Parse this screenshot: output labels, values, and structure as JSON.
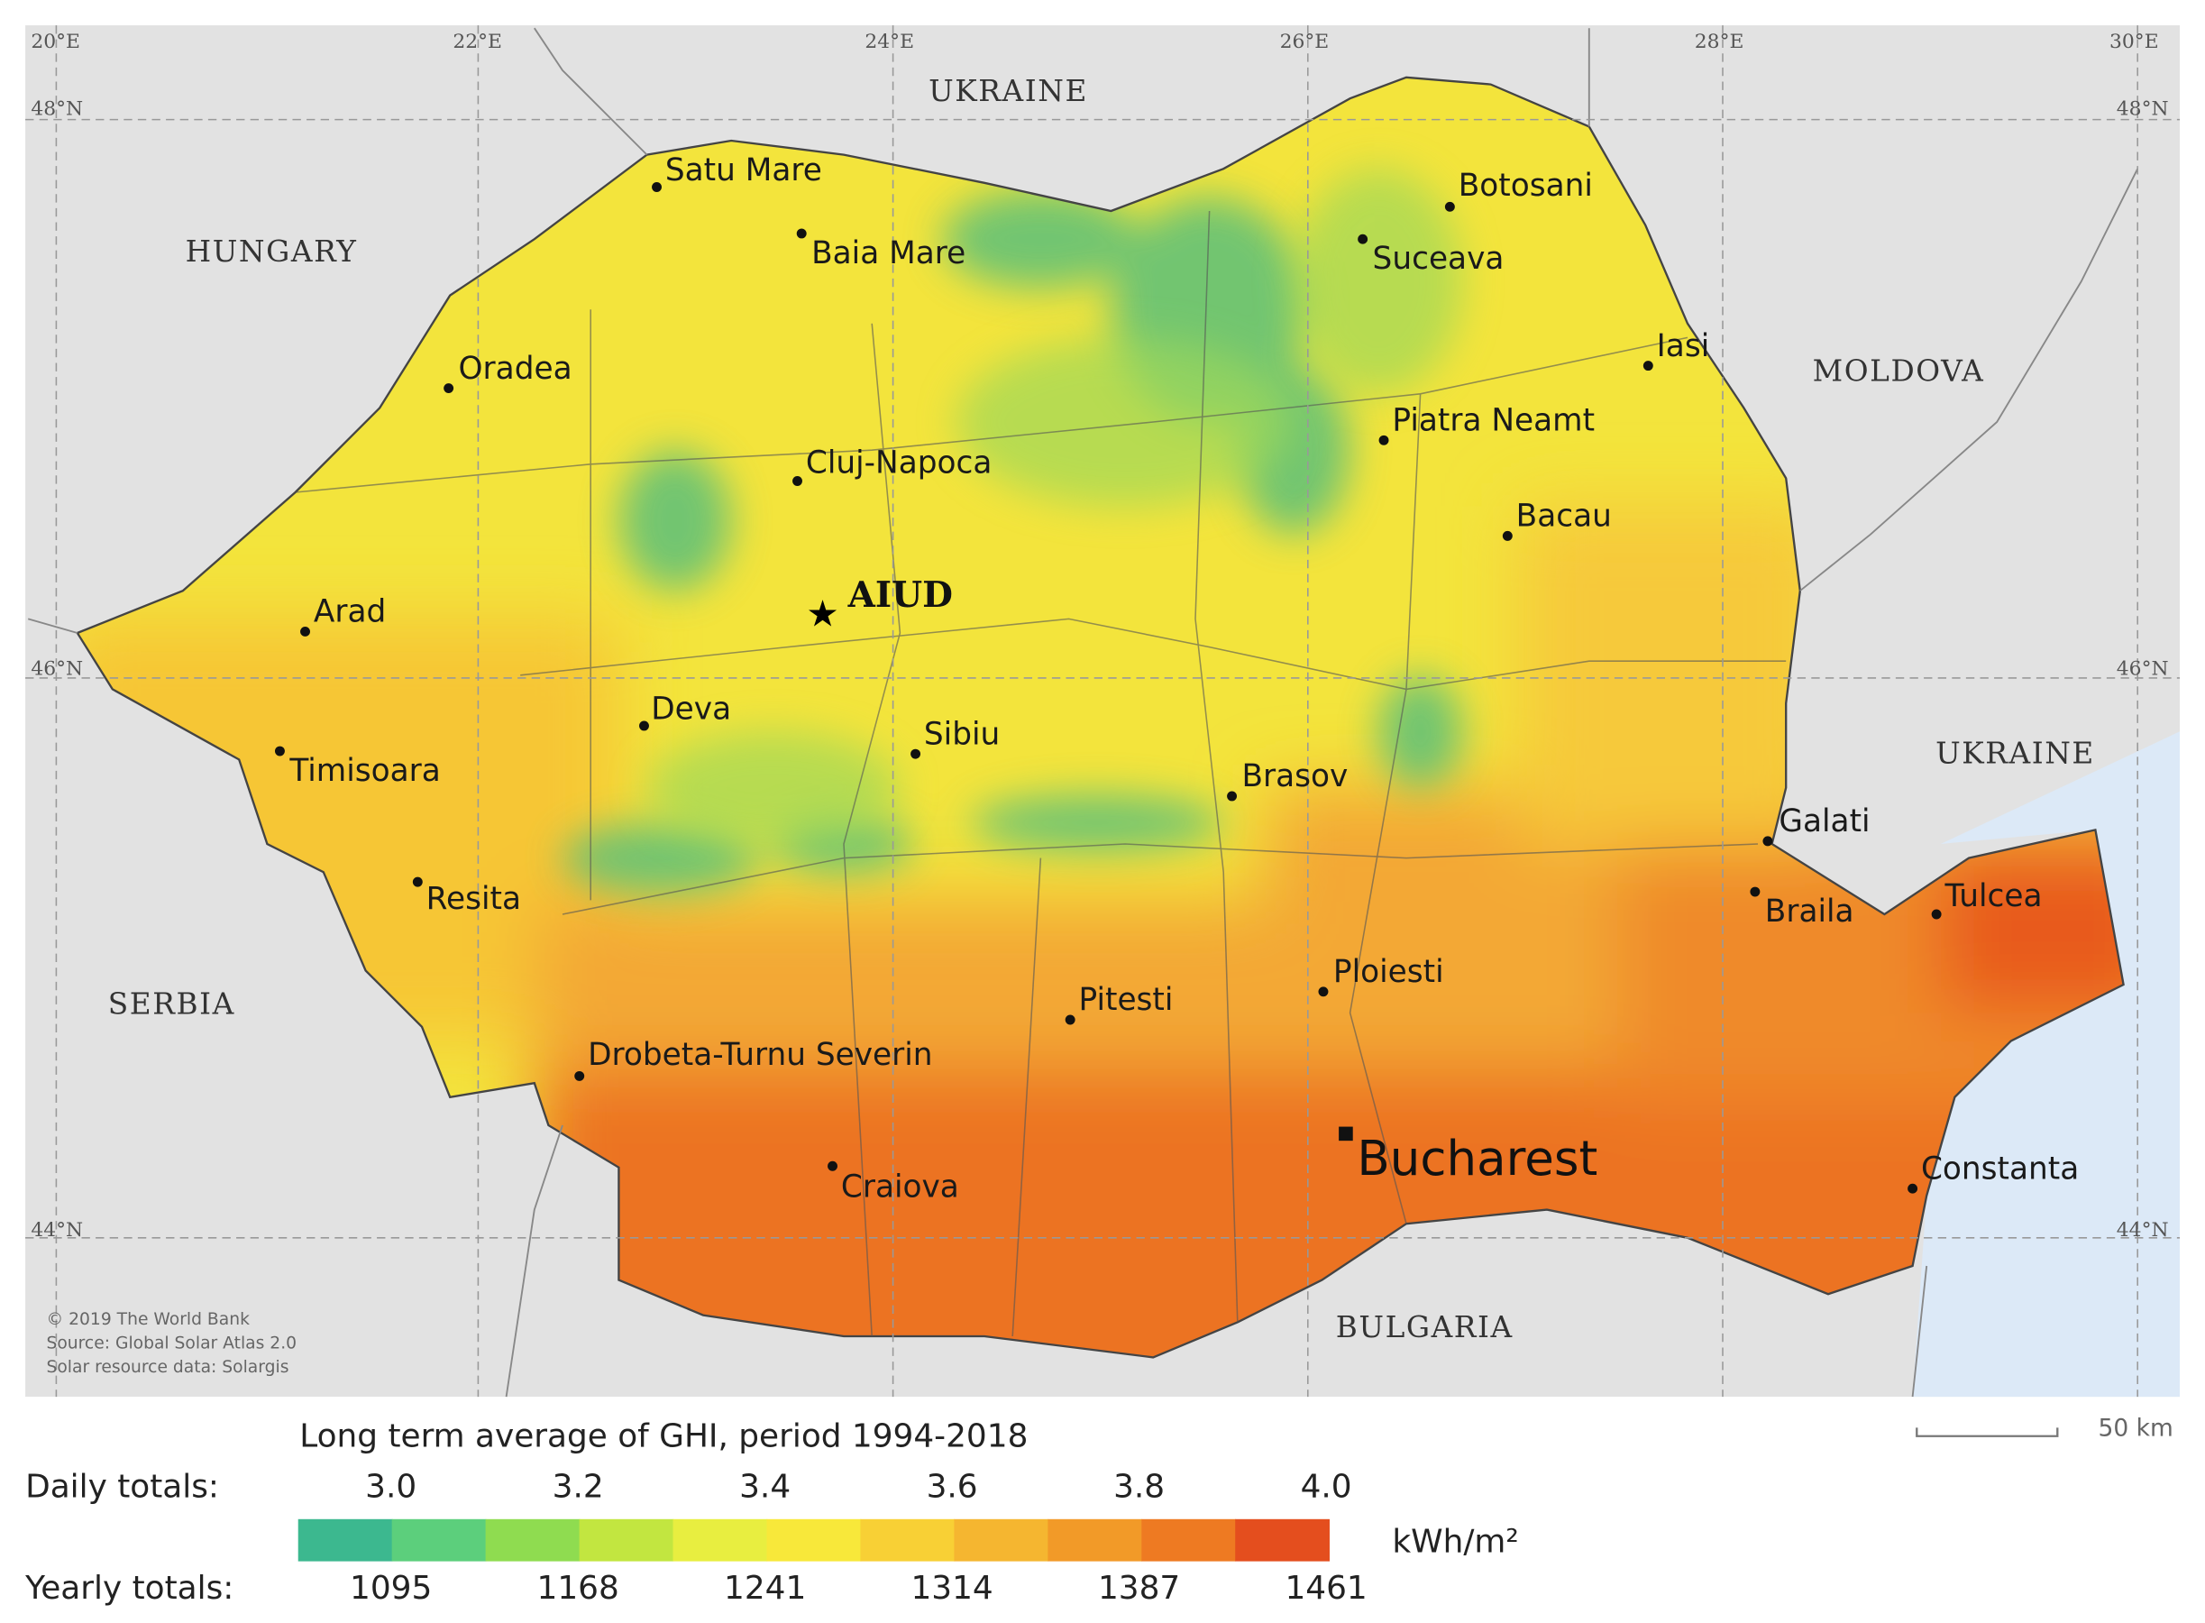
{
  "graticule": {
    "longitudes": [
      "20°E",
      "22°E",
      "24°E",
      "26°E",
      "28°E",
      "30°E"
    ],
    "latitudes": [
      "48°N",
      "46°N",
      "44°N"
    ]
  },
  "countries": [
    "UKRAINE",
    "HUNGARY",
    "MOLDOVA",
    "UKRAINE",
    "SERBIA",
    "BULGARIA"
  ],
  "cities": [
    "Satu Mare",
    "Baia Mare",
    "Oradea",
    "Cluj-Napoca",
    "Arad",
    "Deva",
    "Timisoara",
    "Resita",
    "Sibiu",
    "Brasov",
    "Drobeta-Turnu Severin",
    "Craiova",
    "Pitesti",
    "Ploiesti",
    "Botosani",
    "Suceava",
    "Iasi",
    "Piatra Neamt",
    "Bacau",
    "Galati",
    "Braila",
    "Tulcea",
    "Constanta"
  ],
  "highlight": "AIUD",
  "capital": "Bucharest",
  "credits": [
    "© 2019 The World Bank",
    "Source: Global Solar Atlas 2.0",
    "Solar resource data: Solargis"
  ],
  "scale_bar": "50 km",
  "legend": {
    "title": "Long term average of GHI, period 1994-2018",
    "daily_label": "Daily totals:",
    "daily": [
      "3.0",
      "3.2",
      "3.4",
      "3.6",
      "3.8",
      "4.0"
    ],
    "unit": "kWh/m²",
    "yearly_label": "Yearly totals:",
    "yearly": [
      "1095",
      "1168",
      "1241",
      "1314",
      "1387",
      "1461"
    ]
  }
}
